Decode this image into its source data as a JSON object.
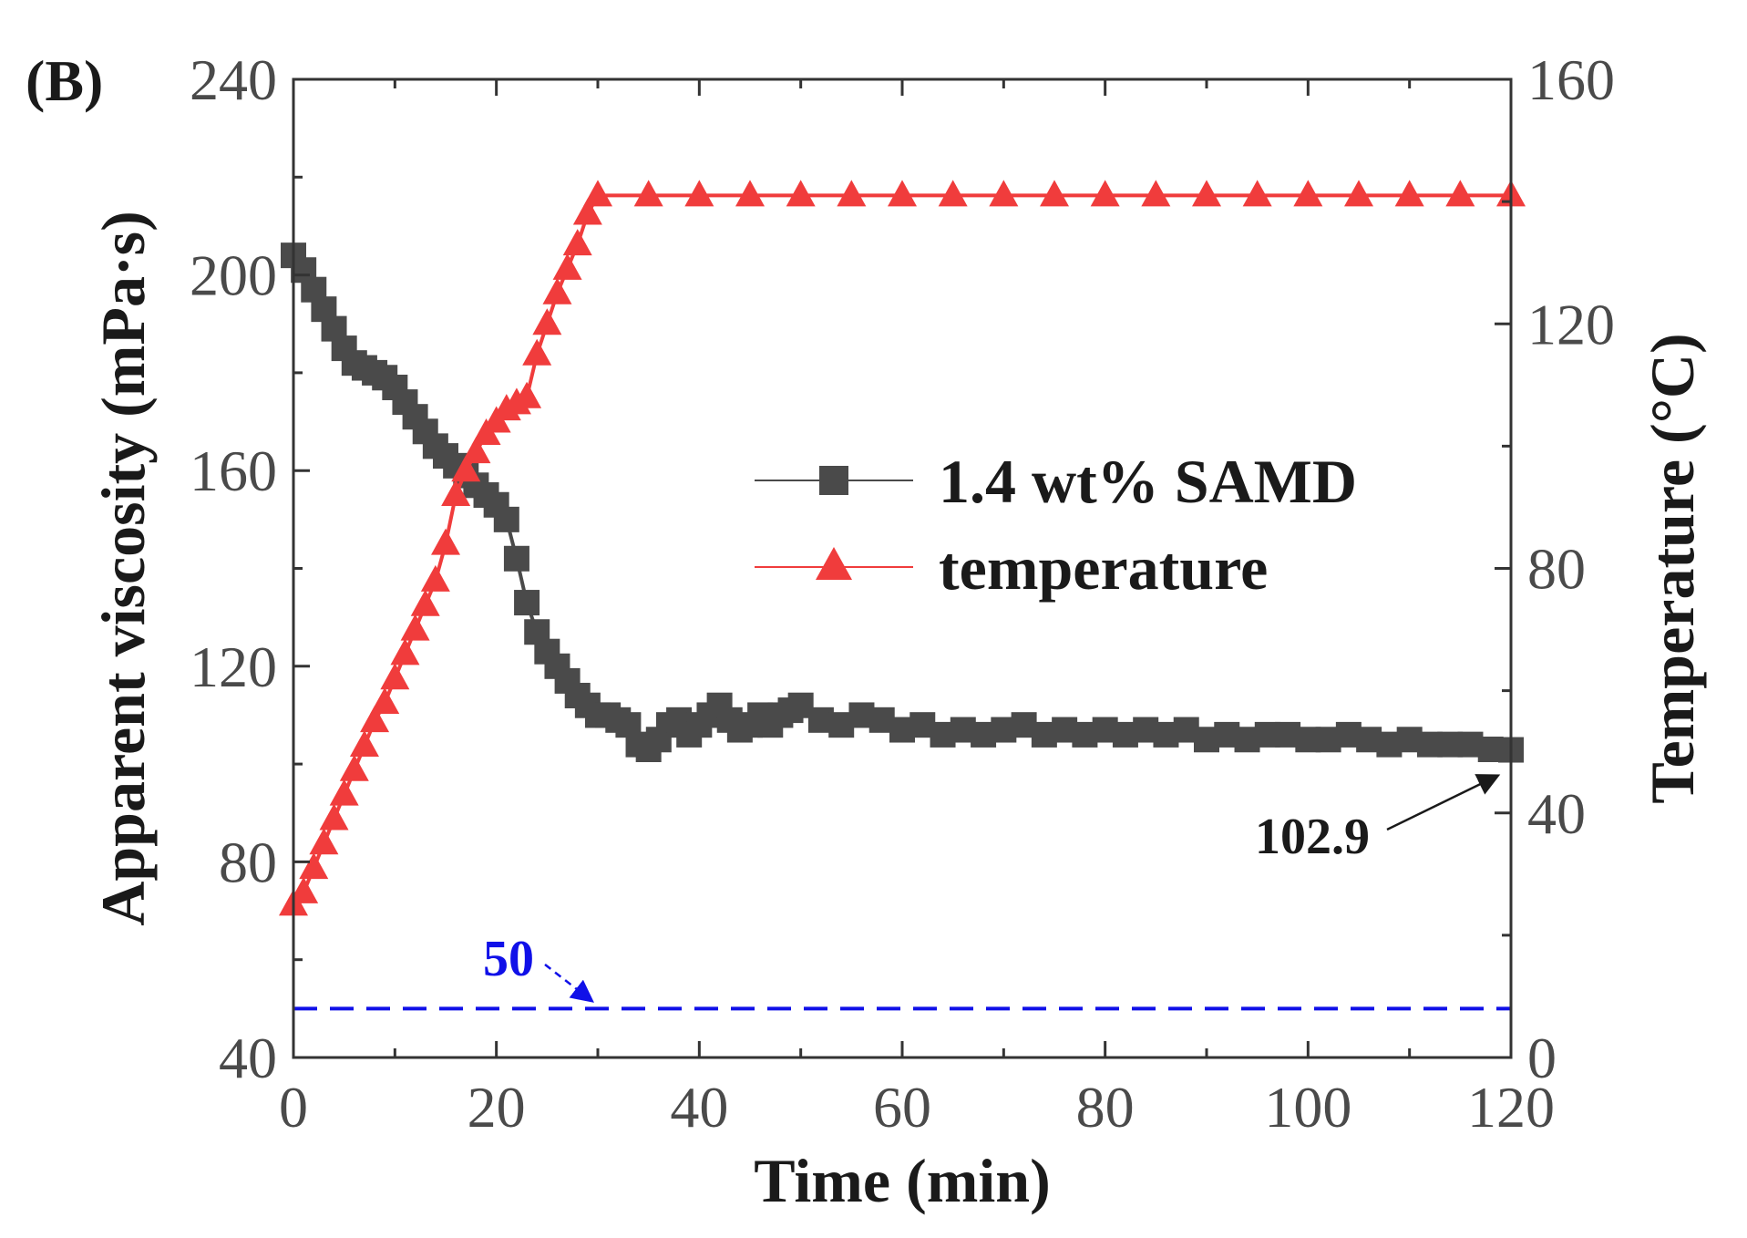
{
  "chart_data": {
    "type": "line",
    "panel_label": "(B)",
    "xlabel": "Time (min)",
    "ylabel": "Apparent viscosity (mPa·s)",
    "y2label": "Temperature (°C)",
    "xlim": [
      0,
      120
    ],
    "ylim": [
      40,
      240
    ],
    "y2lim": [
      0,
      160
    ],
    "xticks": [
      "0",
      "20",
      "40",
      "60",
      "80",
      "100",
      "120"
    ],
    "yticks": [
      "40",
      "80",
      "120",
      "160",
      "200",
      "240"
    ],
    "y2ticks": [
      "0",
      "40",
      "80",
      "120",
      "160"
    ],
    "legend_position": "center-right",
    "colors": {
      "viscosity": "#4a4a4a",
      "temperature": "#f03c3c",
      "reference": "#1010e8"
    },
    "series": [
      {
        "name": "1.4 wt% SAMD",
        "axis": "left",
        "marker": "square",
        "x": [
          0,
          1,
          2,
          3,
          4,
          5,
          6,
          7,
          8,
          9,
          10,
          11,
          12,
          13,
          14,
          15,
          16,
          17,
          18,
          19,
          20,
          21,
          22,
          23,
          24,
          25,
          26,
          27,
          28,
          29,
          30,
          31,
          32,
          33,
          34,
          35,
          36,
          37,
          38,
          39,
          40,
          41,
          42,
          43,
          44,
          45,
          46,
          47,
          48,
          49,
          50,
          52,
          54,
          56,
          58,
          60,
          62,
          64,
          66,
          68,
          70,
          72,
          74,
          76,
          78,
          80,
          82,
          84,
          86,
          88,
          90,
          92,
          94,
          96,
          98,
          100,
          102,
          104,
          106,
          108,
          110,
          112,
          114,
          116,
          118,
          120
        ],
        "values": [
          204,
          201,
          197,
          193,
          189,
          185,
          182,
          181,
          180,
          179,
          177,
          174,
          171,
          168,
          165,
          163,
          161,
          159,
          157,
          155,
          153,
          150,
          142,
          133,
          127,
          123,
          120,
          117,
          114,
          112,
          110,
          110,
          109,
          108,
          104,
          103,
          105,
          108,
          109,
          106,
          108,
          110,
          112,
          109,
          107,
          108,
          110,
          108,
          110,
          111,
          112,
          109,
          108,
          110,
          109,
          107,
          108,
          106,
          107,
          106,
          107,
          108,
          106,
          107,
          106,
          107,
          106,
          107,
          106,
          107,
          105,
          106,
          105,
          106,
          106,
          105,
          105,
          106,
          105,
          104,
          105,
          104,
          104,
          104,
          103,
          102.9
        ]
      },
      {
        "name": "temperature",
        "axis": "right",
        "marker": "triangle",
        "x": [
          0,
          1,
          2,
          3,
          4,
          5,
          6,
          7,
          8,
          9,
          10,
          11,
          12,
          13,
          14,
          15,
          16,
          17,
          18,
          19,
          20,
          21,
          22,
          23,
          24,
          25,
          26,
          27,
          28,
          29,
          30,
          35,
          40,
          45,
          50,
          55,
          60,
          65,
          70,
          75,
          80,
          85,
          90,
          95,
          100,
          105,
          110,
          115,
          120
        ],
        "values": [
          25,
          27,
          31,
          35,
          39,
          43,
          47,
          51,
          55,
          58,
          62,
          66,
          70,
          74,
          78,
          84,
          92,
          96,
          99,
          102,
          104,
          106,
          107,
          108,
          115,
          120,
          125,
          129,
          133,
          138,
          141,
          141,
          141,
          141,
          141,
          141,
          141,
          141,
          141,
          141,
          141,
          141,
          141,
          141,
          141,
          141,
          141,
          141,
          141
        ]
      }
    ],
    "reference_line": {
      "y": 50,
      "label": "50",
      "style": "dashed"
    },
    "annotations": [
      {
        "text": "102.9",
        "x": 120,
        "y": 102.9
      }
    ]
  }
}
